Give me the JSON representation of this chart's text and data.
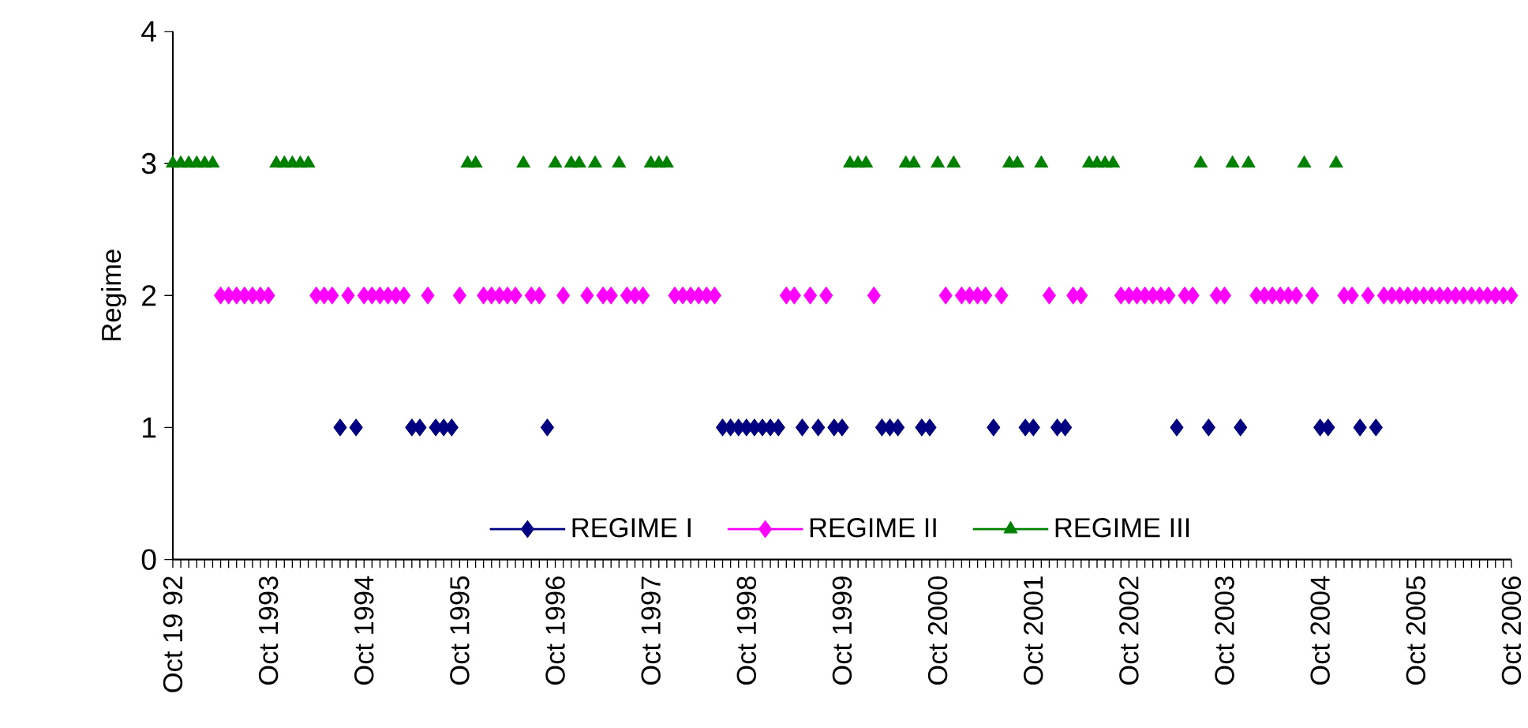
{
  "chart_data": {
    "type": "scatter",
    "ylabel": "Regime",
    "ylim": [
      0,
      4
    ],
    "yticks": [
      0,
      1,
      2,
      3,
      4
    ],
    "grid": false,
    "legend": "bottom",
    "categories": [
      "Oct 19 92",
      null,
      null,
      null,
      null,
      null,
      null,
      null,
      null,
      null,
      null,
      null,
      "Oct 1993",
      null,
      null,
      null,
      null,
      null,
      null,
      null,
      null,
      null,
      null,
      null,
      "Oct 1994",
      null,
      null,
      null,
      null,
      null,
      null,
      null,
      null,
      null,
      null,
      null,
      "Oct 1995",
      null,
      null,
      null,
      null,
      null,
      null,
      null,
      null,
      null,
      null,
      null,
      "Oct 1996",
      null,
      null,
      null,
      null,
      null,
      null,
      null,
      null,
      null,
      null,
      null,
      "Oct 1997",
      null,
      null,
      null,
      null,
      null,
      null,
      null,
      null,
      null,
      null,
      null,
      "Oct 1998",
      null,
      null,
      null,
      null,
      null,
      null,
      null,
      null,
      null,
      null,
      null,
      "Oct 1999",
      null,
      null,
      null,
      null,
      null,
      null,
      null,
      null,
      null,
      null,
      null,
      "Oct 2000",
      null,
      null,
      null,
      null,
      null,
      null,
      null,
      null,
      null,
      null,
      null,
      "Oct 2001",
      null,
      null,
      null,
      null,
      null,
      null,
      null,
      null,
      null,
      null,
      null,
      "Oct 2002",
      null,
      null,
      null,
      null,
      null,
      null,
      null,
      null,
      null,
      null,
      null,
      "Oct 2003",
      null,
      null,
      null,
      null,
      null,
      null,
      null,
      null,
      null,
      null,
      null,
      "Oct 2004",
      null,
      null,
      null,
      null,
      null,
      null,
      null,
      null,
      null,
      null,
      null,
      "Oct 2005",
      null,
      null,
      null,
      null,
      null,
      null,
      null,
      null,
      null,
      null,
      null,
      "Oct 2006"
    ],
    "series": [
      {
        "name": "REGIME I",
        "color": "#000080",
        "marker": "diamond",
        "values": [
          null,
          null,
          null,
          null,
          null,
          null,
          null,
          null,
          null,
          null,
          null,
          null,
          null,
          null,
          null,
          null,
          null,
          null,
          null,
          null,
          null,
          1,
          null,
          1,
          null,
          null,
          null,
          null,
          null,
          null,
          1,
          1,
          null,
          1,
          1,
          1,
          null,
          null,
          null,
          null,
          null,
          null,
          null,
          null,
          null,
          null,
          null,
          1,
          null,
          null,
          null,
          null,
          null,
          null,
          null,
          null,
          null,
          null,
          null,
          null,
          null,
          null,
          null,
          null,
          null,
          null,
          null,
          null,
          null,
          1,
          1,
          1,
          1,
          1,
          1,
          1,
          1,
          null,
          null,
          1,
          null,
          1,
          null,
          1,
          1,
          null,
          null,
          null,
          null,
          1,
          1,
          1,
          null,
          null,
          1,
          1,
          null,
          null,
          null,
          null,
          null,
          null,
          null,
          1,
          null,
          null,
          null,
          1,
          1,
          null,
          null,
          1,
          1,
          null,
          null,
          null,
          null,
          null,
          null,
          null,
          null,
          null,
          null,
          null,
          null,
          null,
          1,
          null,
          null,
          null,
          1,
          null,
          null,
          null,
          1,
          null,
          null,
          null,
          null,
          null,
          null,
          null,
          null,
          null,
          1,
          1,
          null,
          null,
          null,
          1,
          null,
          1,
          null,
          null,
          null,
          null,
          null,
          null,
          null,
          null,
          null,
          null,
          null,
          null,
          null,
          null,
          null,
          null,
          null
        ]
      },
      {
        "name": "REGIME II",
        "color": "#ff00ff",
        "marker": "diamond",
        "values": [
          null,
          null,
          null,
          null,
          null,
          null,
          2,
          2,
          2,
          2,
          2,
          2,
          2,
          null,
          null,
          null,
          null,
          null,
          2,
          2,
          2,
          null,
          2,
          null,
          2,
          2,
          2,
          2,
          2,
          2,
          null,
          null,
          2,
          null,
          null,
          null,
          2,
          null,
          null,
          2,
          2,
          2,
          2,
          2,
          null,
          2,
          2,
          null,
          null,
          2,
          null,
          null,
          2,
          null,
          2,
          2,
          null,
          2,
          2,
          2,
          null,
          null,
          null,
          2,
          2,
          2,
          2,
          2,
          2,
          null,
          null,
          null,
          null,
          null,
          null,
          null,
          null,
          2,
          2,
          null,
          2,
          null,
          2,
          null,
          null,
          null,
          null,
          null,
          2,
          null,
          null,
          null,
          null,
          null,
          null,
          null,
          null,
          2,
          null,
          2,
          2,
          2,
          2,
          null,
          2,
          null,
          null,
          null,
          null,
          null,
          2,
          null,
          null,
          2,
          2,
          null,
          null,
          null,
          null,
          2,
          2,
          2,
          2,
          2,
          2,
          2,
          null,
          2,
          2,
          null,
          null,
          2,
          2,
          null,
          null,
          null,
          2,
          2,
          2,
          2,
          2,
          2,
          null,
          2,
          null,
          null,
          null,
          2,
          2,
          null,
          2,
          null,
          2,
          2,
          2,
          2,
          2,
          2,
          2,
          2,
          2,
          2,
          2,
          2,
          2,
          2,
          2,
          2,
          2
        ]
      },
      {
        "name": "REGIME III",
        "color": "#008000",
        "marker": "triangle",
        "values": [
          3,
          3,
          3,
          3,
          3,
          3,
          null,
          null,
          null,
          null,
          null,
          null,
          null,
          3,
          3,
          3,
          3,
          3,
          null,
          null,
          null,
          null,
          null,
          null,
          null,
          null,
          null,
          null,
          null,
          null,
          null,
          null,
          null,
          null,
          null,
          null,
          null,
          3,
          3,
          null,
          null,
          null,
          null,
          null,
          3,
          null,
          null,
          null,
          3,
          null,
          3,
          3,
          null,
          3,
          null,
          null,
          3,
          null,
          null,
          null,
          3,
          3,
          3,
          null,
          null,
          null,
          null,
          null,
          null,
          null,
          null,
          null,
          null,
          null,
          null,
          null,
          null,
          null,
          null,
          null,
          null,
          null,
          null,
          null,
          null,
          3,
          3,
          3,
          null,
          null,
          null,
          null,
          3,
          3,
          null,
          null,
          3,
          null,
          3,
          null,
          null,
          null,
          null,
          null,
          null,
          3,
          3,
          null,
          null,
          3,
          null,
          null,
          null,
          null,
          null,
          3,
          3,
          3,
          3,
          null,
          null,
          null,
          null,
          null,
          null,
          null,
          null,
          null,
          null,
          3,
          null,
          null,
          null,
          3,
          null,
          3,
          null,
          null,
          null,
          null,
          null,
          null,
          3,
          null,
          null,
          null,
          3,
          null,
          null,
          null,
          null,
          null,
          null,
          null,
          null,
          null,
          null,
          null,
          null,
          null,
          null,
          null,
          null,
          null,
          null,
          null,
          null,
          null,
          null
        ]
      }
    ]
  }
}
